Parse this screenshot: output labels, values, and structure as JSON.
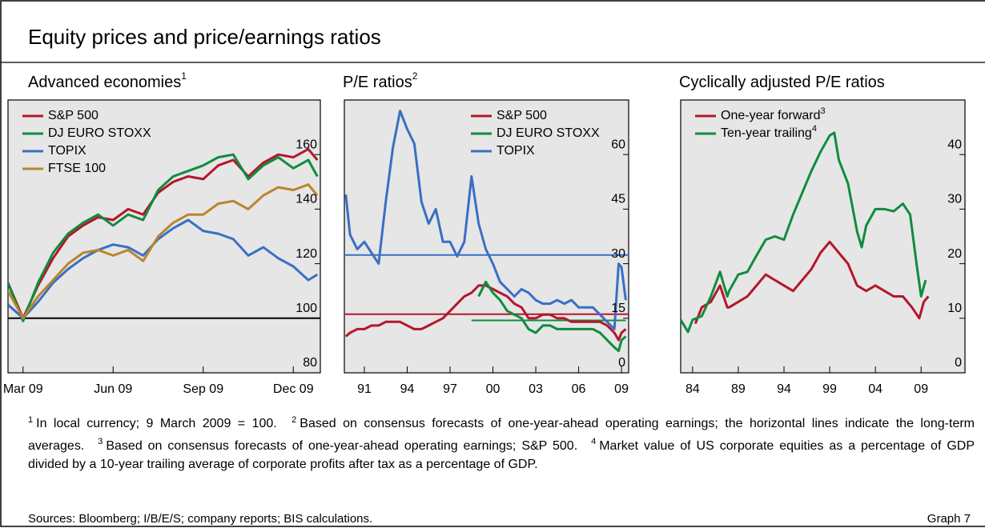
{
  "title": "Equity prices and price/earnings ratios",
  "chart_data": [
    {
      "type": "line",
      "title": "Advanced economies",
      "title_note": "1",
      "x": [
        2.5,
        3.0,
        3.5,
        4.0,
        4.5,
        5.0,
        5.5,
        6.0,
        6.5,
        7.0,
        7.5,
        8.0,
        8.5,
        9.0,
        9.5,
        10.0,
        10.5,
        11.0,
        11.5,
        12.0,
        12.5,
        12.8
      ],
      "series": [
        {
          "name": "S&P 500",
          "color": "#b5162b",
          "values": [
            113,
            100,
            112,
            122,
            130,
            134,
            137,
            136,
            140,
            138,
            146,
            150,
            152,
            151,
            156,
            158,
            152,
            157,
            160,
            159,
            162,
            158
          ]
        },
        {
          "name": "DJ EURO STOXX",
          "color": "#0f8c3f",
          "values": [
            113,
            99,
            113,
            124,
            131,
            135,
            138,
            134,
            138,
            136,
            147,
            152,
            154,
            156,
            159,
            160,
            151,
            156,
            159,
            155,
            158,
            152
          ]
        },
        {
          "name": "TOPIX",
          "color": "#3a6fc4",
          "values": [
            105,
            100,
            106,
            113,
            118,
            122,
            125,
            127,
            126,
            123,
            129,
            133,
            136,
            132,
            131,
            129,
            123,
            126,
            122,
            119,
            114,
            116
          ]
        },
        {
          "name": "FTSE 100",
          "color": "#b8862a",
          "values": [
            110,
            100,
            108,
            114,
            120,
            124,
            125,
            123,
            125,
            121,
            130,
            135,
            138,
            138,
            142,
            143,
            140,
            145,
            148,
            147,
            149,
            145
          ]
        }
      ],
      "reference_lines": [
        {
          "value": 100,
          "color": "#000000"
        }
      ],
      "xlim": [
        2.5,
        12.9
      ],
      "xticks": [
        {
          "value": 3,
          "label": "Mar 09"
        },
        {
          "value": 6,
          "label": "Jun 09"
        },
        {
          "value": 9,
          "label": "Sep 09"
        },
        {
          "value": 12,
          "label": "Dec 09"
        }
      ],
      "ylim": [
        80,
        180
      ],
      "yticks": [
        80,
        100,
        120,
        140,
        160
      ]
    },
    {
      "type": "line",
      "title": "P/E ratios",
      "title_note": "2",
      "x": [
        1989.7,
        1990,
        1990.5,
        1991,
        1991.5,
        1992,
        1992.5,
        1993,
        1993.5,
        1994,
        1994.5,
        1995,
        1995.5,
        1996,
        1996.5,
        1997,
        1997.5,
        1998,
        1998.5,
        1999,
        1999.5,
        2000,
        2000.5,
        2001,
        2001.5,
        2002,
        2002.5,
        2003,
        2003.5,
        2004,
        2004.5,
        2005,
        2005.5,
        2006,
        2006.5,
        2007,
        2007.5,
        2008,
        2008.5,
        2008.8,
        2009,
        2009.3
      ],
      "series": [
        {
          "name": "S&P 500",
          "color": "#b5162b",
          "values": [
            10,
            11,
            12,
            12,
            13,
            13,
            14,
            14,
            14,
            13,
            12,
            12,
            13,
            14,
            15,
            17,
            19,
            21,
            22,
            24,
            24,
            23,
            22,
            21,
            19,
            18,
            15,
            15,
            16,
            16,
            15,
            15,
            14,
            14,
            14,
            14,
            14,
            13,
            11,
            9,
            11,
            12
          ]
        },
        {
          "name": "DJ EURO STOXX",
          "color": "#0f8c3f",
          "values": [
            null,
            null,
            null,
            null,
            null,
            null,
            null,
            null,
            null,
            null,
            null,
            null,
            null,
            null,
            null,
            null,
            null,
            null,
            null,
            21,
            25,
            22,
            20,
            17,
            16,
            15,
            12,
            11,
            13,
            13,
            12,
            12,
            12,
            12,
            12,
            12,
            11,
            9,
            7,
            6,
            9,
            10
          ]
        },
        {
          "name": "TOPIX",
          "color": "#3a6fc4",
          "values": [
            49,
            38,
            34,
            36,
            33,
            30,
            47,
            62,
            72,
            67,
            63,
            47,
            41,
            45,
            36,
            36,
            32,
            36,
            54,
            41,
            34,
            30,
            25,
            23,
            21,
            23,
            22,
            20,
            19,
            19,
            20,
            19,
            20,
            18,
            18,
            18,
            16,
            14,
            12,
            30,
            29,
            20
          ]
        }
      ],
      "reference_lines": [
        {
          "value": 16.1,
          "color": "#b5162b"
        },
        {
          "value": 32.4,
          "color": "#3a6fc4"
        },
        {
          "value": 14.4,
          "color": "#0f8c3f",
          "x": [
            1998.5,
            2009.3
          ]
        }
      ],
      "xlim": [
        1989.6,
        2009.5
      ],
      "xticks": [
        {
          "value": 1991,
          "label": "91"
        },
        {
          "value": 1994,
          "label": "94"
        },
        {
          "value": 1997,
          "label": "97"
        },
        {
          "value": 2000,
          "label": "00"
        },
        {
          "value": 2003,
          "label": "03"
        },
        {
          "value": 2006,
          "label": "06"
        },
        {
          "value": 2009,
          "label": "09"
        }
      ],
      "ylim": [
        0,
        75
      ],
      "yticks": [
        0,
        15,
        30,
        45,
        60
      ]
    },
    {
      "type": "line",
      "title": "Cyclically adjusted P/E ratios",
      "series": [
        {
          "name": "One-year forward",
          "note": "3",
          "color": "#b5162b",
          "x": [
            1984.3,
            1985,
            1986,
            1987,
            1987.8,
            1988,
            1989,
            1990,
            1991,
            1992,
            1993,
            1994,
            1995,
            1996,
            1997,
            1998,
            1999,
            2000,
            2001,
            2002,
            2003,
            2004,
            2005,
            2006,
            2007,
            2008,
            2008.8,
            2009.3,
            2009.8
          ],
          "values": [
            9,
            12,
            13,
            16,
            12,
            12,
            13,
            14,
            16,
            18,
            17,
            16,
            15,
            17,
            19,
            22,
            24,
            22,
            20,
            16,
            15,
            16,
            15,
            14,
            14,
            12,
            10,
            13,
            14
          ]
        },
        {
          "name": "Ten-year trailing",
          "note": "4",
          "color": "#0f8c3f",
          "x": [
            1982.7,
            1983.5,
            1984,
            1985,
            1986,
            1987,
            1987.8,
            1988,
            1989,
            1990,
            1991,
            1992,
            1993,
            1994,
            1995,
            1996,
            1997,
            1998,
            1999,
            1999.5,
            2000,
            2001,
            2002,
            2002.5,
            2003,
            2004,
            2005,
            2006,
            2007,
            2007.8,
            2008.5,
            2009,
            2009.5
          ],
          "values": [
            9.7,
            7.5,
            9.7,
            10.4,
            14,
            18.5,
            14,
            15,
            18,
            18.5,
            21.5,
            24.4,
            25,
            24.4,
            29,
            33,
            37,
            40.5,
            43.5,
            44,
            39,
            34.7,
            25.9,
            23,
            27,
            30,
            30,
            29.6,
            31,
            29,
            20,
            14,
            17
          ]
        }
      ],
      "xlim": [
        1982.7,
        2013.8
      ],
      "xticks": [
        {
          "value": 1984,
          "label": "84"
        },
        {
          "value": 1989,
          "label": "89"
        },
        {
          "value": 1994,
          "label": "94"
        },
        {
          "value": 1999,
          "label": "99"
        },
        {
          "value": 2004,
          "label": "04"
        },
        {
          "value": 2009,
          "label": "09"
        }
      ],
      "ylim": [
        0,
        50
      ],
      "yticks": [
        0,
        10,
        20,
        30,
        40
      ]
    }
  ],
  "footnotes": [
    {
      "mark": "1",
      "text": "In local currency; 9 March 2009 = 100."
    },
    {
      "mark": "2",
      "text": "Based on consensus forecasts of one-year-ahead operating earnings; the horizontal lines indicate the long-term averages."
    },
    {
      "mark": "3",
      "text": "Based on consensus forecasts of one-year-ahead operating earnings; S&P 500."
    },
    {
      "mark": "4",
      "text": "Market value of US corporate equities as a percentage of GDP divided by a 10-year trailing average of corporate profits after tax as a percentage of GDP."
    }
  ],
  "sources": "Sources: Bloomberg; I/B/E/S; company reports; BIS calculations.",
  "graph_label": "Graph 7"
}
